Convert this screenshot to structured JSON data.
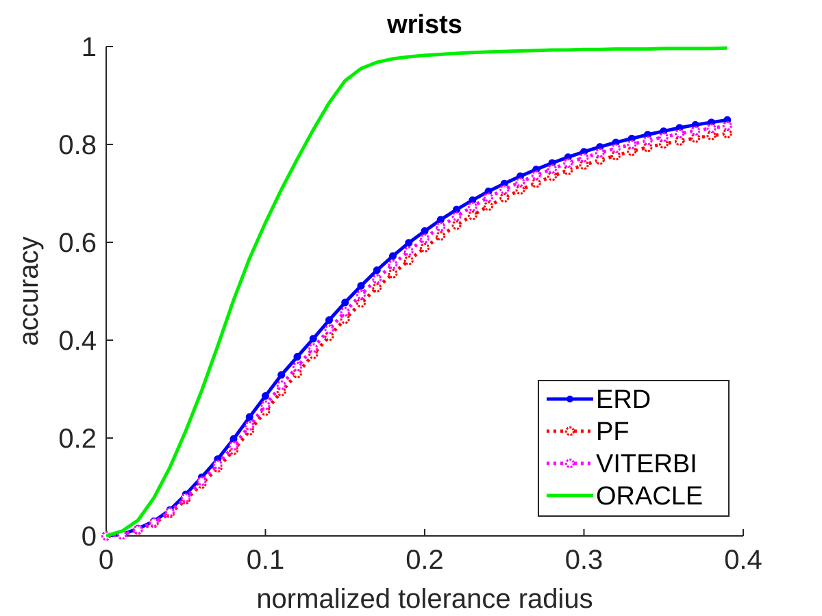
{
  "chart_data": {
    "type": "line",
    "title": "wrists",
    "xlabel": "normalized tolerance radius",
    "ylabel": "accuracy",
    "xlim": [
      0,
      0.4
    ],
    "ylim": [
      0,
      1
    ],
    "xticks": [
      0,
      0.1,
      0.2,
      0.3,
      0.4
    ],
    "xtick_labels": [
      "0",
      "0.1",
      "0.2",
      "0.3",
      "0.4"
    ],
    "yticks": [
      0,
      0.2,
      0.4,
      0.6,
      0.8,
      1
    ],
    "ytick_labels": [
      "0",
      "0.2",
      "0.4",
      "0.6",
      "0.8",
      "1"
    ],
    "grid": false,
    "legend_position": "bottom-right",
    "x": [
      0,
      0.01,
      0.02,
      0.03,
      0.04,
      0.05,
      0.06,
      0.07,
      0.08,
      0.09,
      0.1,
      0.11,
      0.12,
      0.13,
      0.14,
      0.15,
      0.16,
      0.17,
      0.18,
      0.19,
      0.2,
      0.21,
      0.22,
      0.23,
      0.24,
      0.25,
      0.26,
      0.27,
      0.28,
      0.29,
      0.3,
      0.31,
      0.32,
      0.33,
      0.34,
      0.35,
      0.36,
      0.37,
      0.38,
      0.39
    ],
    "series": [
      {
        "name": "ERD",
        "color": "#0000ff",
        "line_style": "solid",
        "marker": "dot",
        "values": [
          0,
          0.003,
          0.015,
          0.03,
          0.053,
          0.085,
          0.12,
          0.157,
          0.198,
          0.243,
          0.286,
          0.329,
          0.366,
          0.403,
          0.441,
          0.477,
          0.511,
          0.543,
          0.572,
          0.599,
          0.623,
          0.646,
          0.667,
          0.686,
          0.704,
          0.72,
          0.735,
          0.749,
          0.762,
          0.774,
          0.785,
          0.795,
          0.804,
          0.812,
          0.82,
          0.827,
          0.834,
          0.84,
          0.845,
          0.85
        ]
      },
      {
        "name": "PF",
        "color": "#ff0000",
        "line_style": "dotted",
        "marker": "circle",
        "values": [
          0,
          0.002,
          0.012,
          0.026,
          0.046,
          0.074,
          0.106,
          0.139,
          0.175,
          0.215,
          0.255,
          0.295,
          0.332,
          0.371,
          0.408,
          0.443,
          0.476,
          0.507,
          0.536,
          0.563,
          0.589,
          0.613,
          0.635,
          0.655,
          0.674,
          0.691,
          0.707,
          0.721,
          0.735,
          0.747,
          0.758,
          0.768,
          0.777,
          0.786,
          0.794,
          0.801,
          0.807,
          0.813,
          0.818,
          0.822
        ]
      },
      {
        "name": "VITERBI",
        "color": "#ff00ff",
        "line_style": "dotted",
        "marker": "circle",
        "values": [
          0,
          0.002,
          0.013,
          0.028,
          0.049,
          0.078,
          0.112,
          0.146,
          0.184,
          0.225,
          0.267,
          0.308,
          0.346,
          0.384,
          0.422,
          0.458,
          0.493,
          0.525,
          0.555,
          0.582,
          0.608,
          0.632,
          0.653,
          0.673,
          0.692,
          0.708,
          0.723,
          0.737,
          0.75,
          0.762,
          0.773,
          0.783,
          0.792,
          0.8,
          0.808,
          0.815,
          0.822,
          0.828,
          0.833,
          0.838
        ]
      },
      {
        "name": "ORACLE",
        "color": "#00ee00",
        "line_style": "solid",
        "marker": "none",
        "values": [
          0,
          0.01,
          0.032,
          0.078,
          0.14,
          0.215,
          0.297,
          0.388,
          0.482,
          0.567,
          0.64,
          0.708,
          0.77,
          0.83,
          0.885,
          0.93,
          0.955,
          0.968,
          0.975,
          0.979,
          0.982,
          0.984,
          0.986,
          0.988,
          0.989,
          0.99,
          0.991,
          0.992,
          0.993,
          0.993,
          0.994,
          0.994,
          0.995,
          0.995,
          0.995,
          0.996,
          0.996,
          0.996,
          0.996,
          0.997
        ]
      }
    ]
  }
}
